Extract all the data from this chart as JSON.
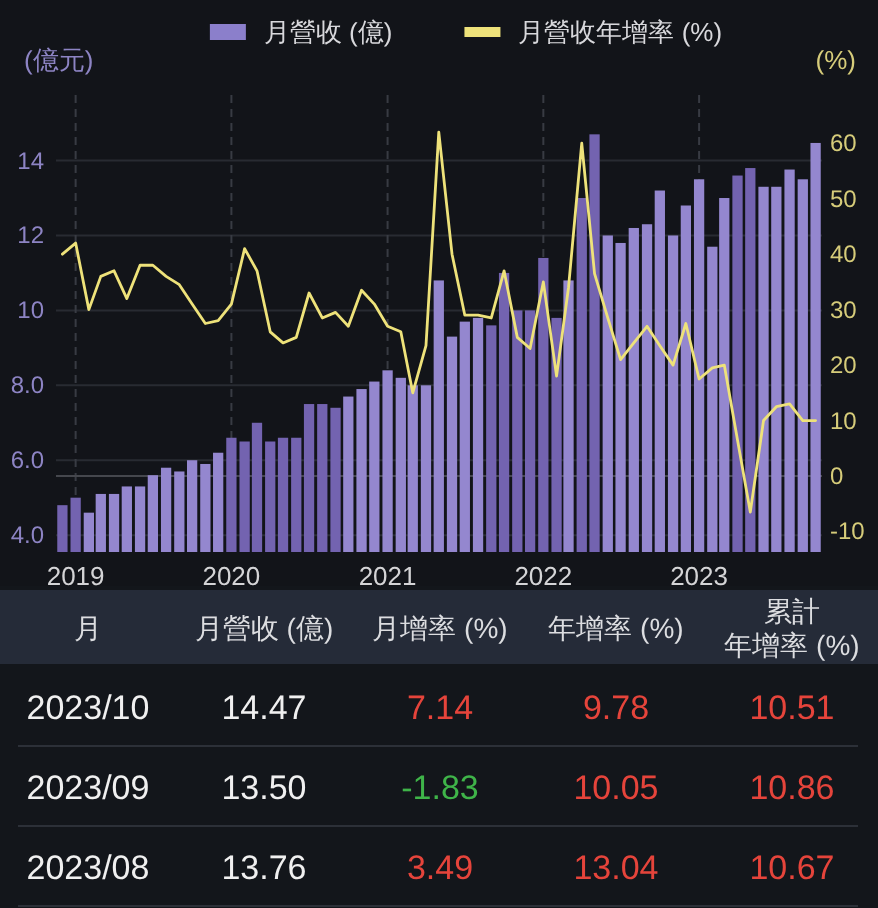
{
  "chart_data": [
    {
      "type": "bar",
      "legend": "top",
      "grid": true,
      "ylabel": "(億元)",
      "y2label": "(%)",
      "x": [
        "2018-12",
        "2019-01",
        "2019-02",
        "2019-03",
        "2019-04",
        "2019-05",
        "2019-06",
        "2019-07",
        "2019-08",
        "2019-09",
        "2019-10",
        "2019-11",
        "2019-12",
        "2020-01",
        "2020-02",
        "2020-03",
        "2020-04",
        "2020-05",
        "2020-06",
        "2020-07",
        "2020-08",
        "2020-09",
        "2020-10",
        "2020-11",
        "2020-12",
        "2021-01",
        "2021-02",
        "2021-03",
        "2021-04",
        "2021-05",
        "2021-06",
        "2021-07",
        "2021-08",
        "2021-09",
        "2021-10",
        "2021-11",
        "2021-12",
        "2022-01",
        "2022-02",
        "2022-03",
        "2022-04",
        "2022-05",
        "2022-06",
        "2022-07",
        "2022-08",
        "2022-09",
        "2022-10",
        "2022-11",
        "2022-12",
        "2023-01",
        "2023-02",
        "2023-03",
        "2023-04",
        "2023-05",
        "2023-06",
        "2023-07",
        "2023-08",
        "2023-09",
        "2023-10"
      ],
      "xlim": [
        "2018-11-16",
        "2023-10-16"
      ],
      "xticks": [
        "2019",
        "2020",
        "2021",
        "2022",
        "2023"
      ],
      "ylim": [
        3.55,
        15.75
      ],
      "yticks": [
        {
          "value": 4,
          "label": "4.0"
        },
        {
          "value": 6,
          "label": "6.0"
        },
        {
          "value": 8,
          "label": "8.0"
        },
        10,
        12,
        14
      ],
      "y2lim": [
        -13.7,
        68.7
      ],
      "y2ticks": [
        -10,
        0,
        10,
        20,
        30,
        40,
        50,
        60
      ],
      "ref_lines": [
        {
          "axis": "y2",
          "value": 0,
          "color": "#45474d"
        }
      ],
      "series": [
        {
          "name": "月營收 (億)",
          "type": "bar",
          "color": "#8b7fcb",
          "colors": [
            "#7363b0",
            "#7363b0",
            "#9487cf",
            "#9487cf",
            "#9487cf",
            "#9487cf",
            "#9487cf",
            "#9487cf",
            "#9487cf",
            "#9487cf",
            "#9487cf",
            "#9487cf",
            "#9487cf",
            "#7363b0",
            "#7363b0",
            "#7363b0",
            "#7363b0",
            "#7363b0",
            "#7363b0",
            "#7363b0",
            "#7363b0",
            "#7363b0",
            "#9487cf",
            "#9487cf",
            "#9487cf",
            "#9487cf",
            "#9487cf",
            "#9487cf",
            "#9487cf",
            "#9487cf",
            "#9487cf",
            "#9487cf",
            "#9487cf",
            "#7363b0",
            "#7363b0",
            "#7363b0",
            "#7363b0",
            "#7363b0",
            "#7363b0",
            "#9487cf",
            "#7363b0",
            "#7363b0",
            "#9487cf",
            "#9487cf",
            "#9487cf",
            "#9487cf",
            "#9487cf",
            "#9487cf",
            "#9487cf",
            "#9487cf",
            "#9487cf",
            "#9487cf",
            "#7363b0",
            "#7363b0",
            "#9487cf",
            "#9487cf",
            "#9487cf",
            "#9487cf",
            "#9487cf"
          ],
          "values": [
            4.8,
            5.0,
            4.6,
            5.1,
            5.1,
            5.3,
            5.3,
            5.6,
            5.8,
            5.7,
            6.0,
            5.9,
            6.2,
            6.6,
            6.5,
            7.0,
            6.5,
            6.6,
            6.6,
            7.5,
            7.5,
            7.4,
            7.7,
            7.9,
            8.1,
            8.4,
            8.2,
            8.0,
            8.0,
            10.8,
            9.3,
            9.7,
            9.8,
            9.6,
            11.0,
            10.0,
            10.0,
            11.4,
            9.8,
            10.8,
            13.0,
            14.7,
            12.0,
            11.8,
            12.2,
            12.3,
            13.2,
            12.0,
            12.8,
            13.5,
            11.7,
            13.0,
            13.6,
            13.8,
            13.3,
            13.3,
            13.76,
            13.5,
            14.47
          ]
        },
        {
          "name": "月營收年增率 (%)",
          "type": "line",
          "axis": "y2",
          "color": "#eee27a",
          "values": [
            40,
            42,
            30,
            36,
            37,
            32,
            38,
            38,
            36,
            34.5,
            31,
            27.5,
            28,
            31,
            41,
            37,
            26,
            24,
            25,
            33,
            28.5,
            29.5,
            27,
            33.5,
            31,
            27,
            26,
            15,
            23.5,
            62,
            40,
            29,
            29,
            28.5,
            37,
            25,
            23,
            35,
            18,
            34,
            60,
            36.5,
            28.5,
            21,
            24,
            27,
            23.5,
            20,
            27.5,
            17.5,
            19.5,
            20,
            6.5,
            -6.5,
            10,
            12.5,
            13,
            10,
            10
          ]
        }
      ]
    },
    {
      "type": "other",
      "ylabel": "月",
      "categories": [
        "2023/10",
        "2023/09",
        "2023/08"
      ],
      "series": [
        {
          "name": "月營收 (億)",
          "color": "#f0f0f0",
          "values": [
            14.47,
            13.5,
            13.76
          ],
          "value_labels": [
            "14.47",
            "13.50",
            "13.76"
          ]
        },
        {
          "name": "月增率 (%)",
          "colors": [
            "#e5443b",
            "#3fb449",
            "#e5443b"
          ],
          "values": [
            7.14,
            -1.83,
            3.49
          ],
          "value_labels": [
            "7.14",
            "-1.83",
            "3.49"
          ]
        },
        {
          "name": "年增率 (%)",
          "colors": [
            "#e5443b",
            "#e5443b",
            "#e5443b"
          ],
          "values": [
            9.78,
            10.05,
            13.04
          ],
          "value_labels": [
            "9.78",
            "10.05",
            "13.04"
          ]
        },
        {
          "name": "累計年增率 (%)",
          "colors": [
            "#e5443b",
            "#e5443b",
            "#e5443b"
          ],
          "values": [
            10.51,
            10.86,
            10.67
          ],
          "value_labels": [
            "10.51",
            "10.86",
            "10.67"
          ]
        }
      ]
    }
  ]
}
